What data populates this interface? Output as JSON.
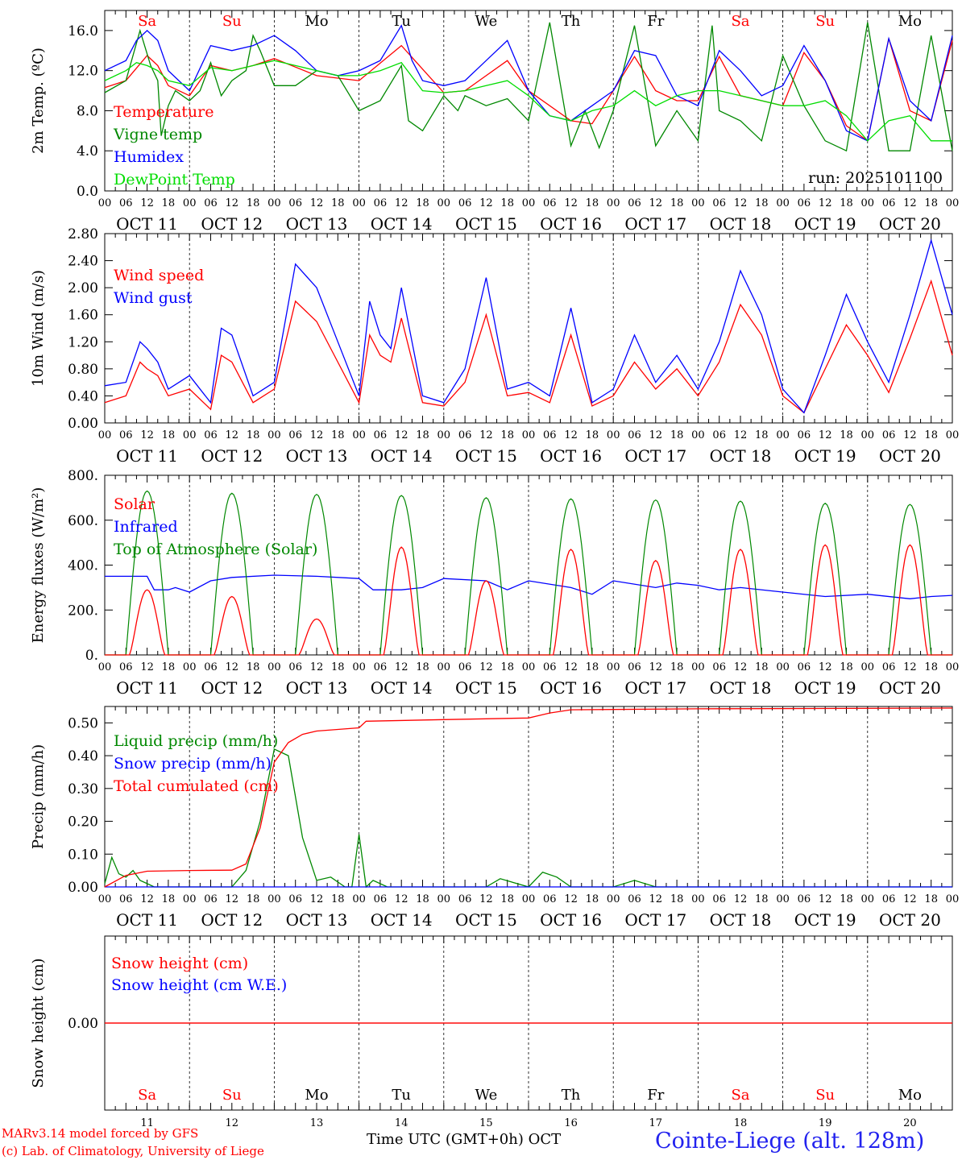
{
  "days": [
    {
      "abbr": "Sa",
      "date": "OCT 11",
      "num": "11",
      "weekend": true
    },
    {
      "abbr": "Su",
      "date": "OCT 12",
      "num": "12",
      "weekend": true
    },
    {
      "abbr": "Mo",
      "date": "OCT 13",
      "num": "13",
      "weekend": false
    },
    {
      "abbr": "Tu",
      "date": "OCT 14",
      "num": "14",
      "weekend": false
    },
    {
      "abbr": "We",
      "date": "OCT 15",
      "num": "15",
      "weekend": false
    },
    {
      "abbr": "Th",
      "date": "OCT 16",
      "num": "16",
      "weekend": false
    },
    {
      "abbr": "Fr",
      "date": "OCT 17",
      "num": "17",
      "weekend": false
    },
    {
      "abbr": "Sa",
      "date": "OCT 18",
      "num": "18",
      "weekend": true
    },
    {
      "abbr": "Su",
      "date": "OCT 19",
      "num": "19",
      "weekend": true
    },
    {
      "abbr": "Mo",
      "date": "OCT 20",
      "num": "20",
      "weekend": false
    }
  ],
  "hour_labels": [
    "00",
    "06",
    "12",
    "18"
  ],
  "colors": {
    "red": "#ff0000",
    "green": "#008800",
    "blue": "#0000ff",
    "lime": "#00dd00",
    "station": "#2222ee"
  },
  "footer": {
    "credit_line1": "MARv3.14 model forced by GFS",
    "credit_line2": "(c) Lab. of Climatology, University of Liege",
    "x_title": "Time UTC (GMT+0h) OCT",
    "station": "Cointe-Liege (alt. 128m)"
  },
  "chart_data": [
    {
      "id": "temp",
      "type": "line",
      "ylabel": "2m Temp. (ºC)",
      "ylim": [
        0,
        18
      ],
      "yticks": [
        "0.0",
        "4.0",
        "8.0",
        "12.0",
        "16.0"
      ],
      "ytick_values": [
        0,
        4,
        8,
        12,
        16
      ],
      "annotation": "run: 2025101100",
      "series": [
        {
          "name": "Temperature",
          "color": "#ff0000",
          "t": [
            0,
            6,
            12,
            15,
            18,
            24,
            30,
            36,
            42,
            48,
            60,
            72,
            84,
            96,
            102,
            108,
            114,
            120,
            132,
            138,
            144,
            150,
            156,
            162,
            168,
            174,
            180,
            186,
            192,
            198,
            204,
            210,
            216,
            222,
            228,
            234,
            240
          ],
          "values": [
            10.3,
            11,
            13.5,
            12.5,
            10.5,
            9.5,
            12.5,
            12,
            12.5,
            13.2,
            11.5,
            11,
            14.5,
            9.8,
            10,
            11.5,
            13,
            10,
            7,
            6.7,
            10,
            13.4,
            10,
            9,
            9,
            13.4,
            9.5,
            9,
            8.5,
            13.8,
            11,
            6.5,
            5,
            15.2,
            8,
            7,
            15
          ]
        },
        {
          "name": "Vigne temp",
          "color": "#008800",
          "t": [
            0,
            6,
            10,
            13,
            15,
            16,
            18,
            20,
            24,
            27,
            30,
            33,
            36,
            40,
            42,
            44,
            48,
            54,
            60,
            66,
            72,
            78,
            84,
            86,
            90,
            96,
            100,
            102,
            108,
            114,
            120,
            126,
            132,
            136,
            140,
            144,
            150,
            156,
            162,
            168,
            172,
            174,
            180,
            186,
            192,
            198,
            204,
            210,
            216,
            222,
            228,
            234,
            240
          ],
          "values": [
            9.8,
            11,
            16,
            12.5,
            11,
            5.5,
            8.5,
            10,
            9,
            10,
            12.8,
            9.5,
            11,
            12,
            15.5,
            14,
            10.5,
            10.5,
            12,
            11.5,
            8,
            9,
            12.5,
            7,
            6,
            9.5,
            8,
            9.5,
            8.5,
            9.2,
            7,
            16.8,
            4.5,
            8,
            4.3,
            8,
            16.5,
            4.5,
            8,
            5,
            16.5,
            8,
            7,
            5,
            13.5,
            8.5,
            5,
            4,
            16.8,
            4,
            4,
            15.5,
            4
          ]
        },
        {
          "name": "Humidex",
          "color": "#0000ff",
          "t": [
            0,
            6,
            9,
            12,
            15,
            18,
            24,
            30,
            36,
            42,
            48,
            54,
            60,
            66,
            72,
            78,
            84,
            87,
            90,
            96,
            102,
            108,
            114,
            120,
            126,
            132,
            138,
            144,
            150,
            156,
            162,
            168,
            174,
            180,
            186,
            192,
            198,
            204,
            210,
            216,
            222,
            228,
            234,
            240
          ],
          "values": [
            12,
            13,
            15,
            16,
            15,
            12,
            10,
            14.5,
            14,
            14.5,
            15.5,
            14,
            12,
            11.5,
            12,
            13,
            16.5,
            13,
            11,
            10.5,
            11,
            13,
            15,
            10,
            7.5,
            7,
            8.5,
            10,
            14,
            13.5,
            9.5,
            8.5,
            14,
            12,
            9.5,
            10.5,
            14.5,
            11,
            6,
            5,
            15.2,
            9,
            7,
            15.5
          ]
        },
        {
          "name": "DewPoint Temp",
          "color": "#00dd00",
          "t": [
            0,
            6,
            9,
            12,
            15,
            18,
            24,
            30,
            36,
            42,
            48,
            54,
            60,
            66,
            72,
            78,
            84,
            90,
            96,
            102,
            108,
            114,
            120,
            126,
            132,
            138,
            144,
            150,
            156,
            162,
            168,
            174,
            180,
            186,
            192,
            198,
            204,
            210,
            216,
            222,
            228,
            234,
            240
          ],
          "values": [
            11,
            12,
            12.8,
            12.5,
            12,
            11,
            10.5,
            12.3,
            12,
            12.5,
            13,
            12.5,
            12,
            11.5,
            11.5,
            12,
            12.8,
            10,
            9.8,
            10,
            10.5,
            11,
            9.5,
            7.5,
            7,
            8,
            8.5,
            10,
            8.5,
            9.5,
            10,
            10,
            9.5,
            9,
            8.5,
            8.5,
            9,
            7.5,
            5,
            7,
            7.5,
            5,
            5
          ]
        }
      ],
      "legend": [
        {
          "label": "Temperature",
          "color": "#ff0000"
        },
        {
          "label": "Vigne temp",
          "color": "#008800"
        },
        {
          "label": "Humidex",
          "color": "#0000ff"
        },
        {
          "label": "DewPoint Temp",
          "color": "#00dd00"
        }
      ]
    },
    {
      "id": "wind",
      "type": "line",
      "ylabel": "10m Wind (m/s)",
      "ylim": [
        0,
        2.8
      ],
      "yticks": [
        "0.00",
        "0.40",
        "0.80",
        "1.20",
        "1.60",
        "2.00",
        "2.40",
        "2.80"
      ],
      "ytick_values": [
        0,
        0.4,
        0.8,
        1.2,
        1.6,
        2.0,
        2.4,
        2.8
      ],
      "series": [
        {
          "name": "Wind speed",
          "color": "#ff0000",
          "t": [
            0,
            6,
            10,
            12,
            15,
            18,
            24,
            30,
            33,
            36,
            42,
            48,
            54,
            60,
            66,
            72,
            75,
            78,
            81,
            84,
            90,
            96,
            102,
            108,
            114,
            120,
            126,
            132,
            138,
            144,
            150,
            156,
            162,
            168,
            174,
            180,
            186,
            192,
            198,
            204,
            210,
            216,
            222,
            228,
            234,
            240
          ],
          "values": [
            0.3,
            0.4,
            0.9,
            0.8,
            0.7,
            0.4,
            0.5,
            0.2,
            1.0,
            0.9,
            0.3,
            0.5,
            1.8,
            1.5,
            0.9,
            0.3,
            1.3,
            1.0,
            0.9,
            1.55,
            0.3,
            0.25,
            0.6,
            1.6,
            0.4,
            0.45,
            0.3,
            1.3,
            0.25,
            0.4,
            0.9,
            0.5,
            0.8,
            0.4,
            0.9,
            1.75,
            1.3,
            0.4,
            0.15,
            0.8,
            1.45,
            1.0,
            0.45,
            1.25,
            2.1,
            1.0
          ]
        },
        {
          "name": "Wind gust",
          "color": "#0000ff",
          "t": [
            0,
            6,
            10,
            12,
            15,
            18,
            24,
            30,
            33,
            36,
            42,
            48,
            54,
            60,
            66,
            72,
            75,
            78,
            81,
            84,
            90,
            96,
            102,
            108,
            114,
            120,
            126,
            132,
            138,
            144,
            150,
            156,
            162,
            168,
            174,
            180,
            186,
            192,
            198,
            204,
            210,
            216,
            222,
            228,
            234,
            240
          ],
          "values": [
            0.55,
            0.6,
            1.2,
            1.1,
            0.9,
            0.5,
            0.7,
            0.3,
            1.4,
            1.3,
            0.4,
            0.6,
            2.35,
            2.0,
            1.2,
            0.4,
            1.8,
            1.3,
            1.1,
            2.0,
            0.4,
            0.3,
            0.8,
            2.15,
            0.5,
            0.6,
            0.4,
            1.7,
            0.3,
            0.5,
            1.3,
            0.6,
            1.0,
            0.5,
            1.2,
            2.25,
            1.6,
            0.5,
            0.15,
            1.0,
            1.9,
            1.2,
            0.6,
            1.6,
            2.7,
            1.6
          ]
        }
      ],
      "legend": [
        {
          "label": "Wind speed",
          "color": "#ff0000"
        },
        {
          "label": "Wind gust",
          "color": "#0000ff"
        }
      ]
    },
    {
      "id": "energy",
      "type": "line",
      "ylabel": "Energy fluxes (W/m²)",
      "ylim": [
        0,
        800
      ],
      "yticks": [
        "0.",
        "200.",
        "400.",
        "600.",
        "800."
      ],
      "ytick_values": [
        0,
        200,
        400,
        600,
        800
      ],
      "solar_peaks": [
        290,
        260,
        160,
        480,
        330,
        470,
        420,
        470,
        490,
        490
      ],
      "toa_peaks": [
        730,
        720,
        715,
        710,
        700,
        695,
        690,
        685,
        675,
        670
      ],
      "series": [
        {
          "name": "Infrared",
          "color": "#0000ff",
          "t": [
            0,
            12,
            14,
            18,
            20,
            24,
            30,
            36,
            48,
            60,
            72,
            76,
            84,
            90,
            96,
            108,
            114,
            120,
            132,
            138,
            144,
            156,
            162,
            168,
            174,
            180,
            192,
            204,
            216,
            228,
            234,
            240
          ],
          "values": [
            350,
            350,
            290,
            290,
            300,
            280,
            330,
            345,
            355,
            350,
            340,
            290,
            290,
            300,
            340,
            330,
            290,
            330,
            300,
            270,
            330,
            300,
            320,
            310,
            290,
            300,
            280,
            260,
            270,
            250,
            260,
            265
          ]
        }
      ],
      "legend": [
        {
          "label": "Solar",
          "color": "#ff0000"
        },
        {
          "label": "Infrared",
          "color": "#0000ff"
        },
        {
          "label": "Top of Atmosphere (Solar)",
          "color": "#008800"
        }
      ]
    },
    {
      "id": "precip",
      "type": "line",
      "ylabel": "Precip (mm/h)",
      "ylim": [
        0,
        0.55
      ],
      "yticks": [
        "0.00",
        "0.10",
        "0.20",
        "0.30",
        "0.40",
        "0.50"
      ],
      "ytick_values": [
        0,
        0.1,
        0.2,
        0.3,
        0.4,
        0.5
      ],
      "series": [
        {
          "name": "Liquid precip (mm/h)",
          "color": "#008800",
          "t": [
            0,
            2,
            4,
            6,
            8,
            10,
            12,
            14,
            16,
            36,
            40,
            44,
            48,
            52,
            56,
            60,
            64,
            68,
            70,
            72,
            74,
            76,
            80,
            96,
            108,
            112,
            120,
            124,
            128,
            132,
            144,
            150,
            156,
            240
          ],
          "values": [
            0.01,
            0.09,
            0.04,
            0.03,
            0.05,
            0.02,
            0.01,
            0.0,
            0.0,
            0.0,
            0.05,
            0.2,
            0.42,
            0.4,
            0.15,
            0.02,
            0.03,
            0.0,
            0.0,
            0.16,
            0.0,
            0.02,
            0.0,
            0.0,
            0.0,
            0.025,
            0.0,
            0.045,
            0.03,
            0.0,
            0.0,
            0.02,
            0.0,
            0.0
          ]
        },
        {
          "name": "Snow precip (mm/h)",
          "color": "#0000ff",
          "t": [
            0,
            240
          ],
          "values": [
            0,
            0
          ]
        },
        {
          "name": "Total cumulated (cm)",
          "color": "#ff0000",
          "t": [
            0,
            6,
            12,
            24,
            36,
            40,
            44,
            48,
            52,
            56,
            60,
            66,
            72,
            74,
            96,
            120,
            126,
            132,
            144,
            168,
            240
          ],
          "values": [
            0.0,
            0.035,
            0.048,
            0.05,
            0.051,
            0.07,
            0.18,
            0.38,
            0.44,
            0.465,
            0.475,
            0.48,
            0.485,
            0.505,
            0.51,
            0.515,
            0.53,
            0.54,
            0.541,
            0.543,
            0.545
          ]
        }
      ],
      "legend": [
        {
          "label": "Liquid precip (mm/h)",
          "color": "#008800"
        },
        {
          "label": "Snow precip (mm/h)",
          "color": "#0000ff"
        },
        {
          "label": "Total cumulated (cm)",
          "color": "#ff0000"
        }
      ]
    },
    {
      "id": "snow",
      "type": "line",
      "ylabel": "Snow height (cm)",
      "ylim": [
        -1,
        1
      ],
      "yticks": [
        "0.00"
      ],
      "ytick_values": [
        0
      ],
      "series": [
        {
          "name": "Snow height (cm)",
          "color": "#ff0000",
          "t": [
            0,
            240
          ],
          "values": [
            0,
            0
          ]
        }
      ],
      "legend": [
        {
          "label": "Snow height (cm)",
          "color": "#ff0000"
        },
        {
          "label": "Snow height (cm W.E.)",
          "color": "#0000ff"
        }
      ]
    }
  ]
}
